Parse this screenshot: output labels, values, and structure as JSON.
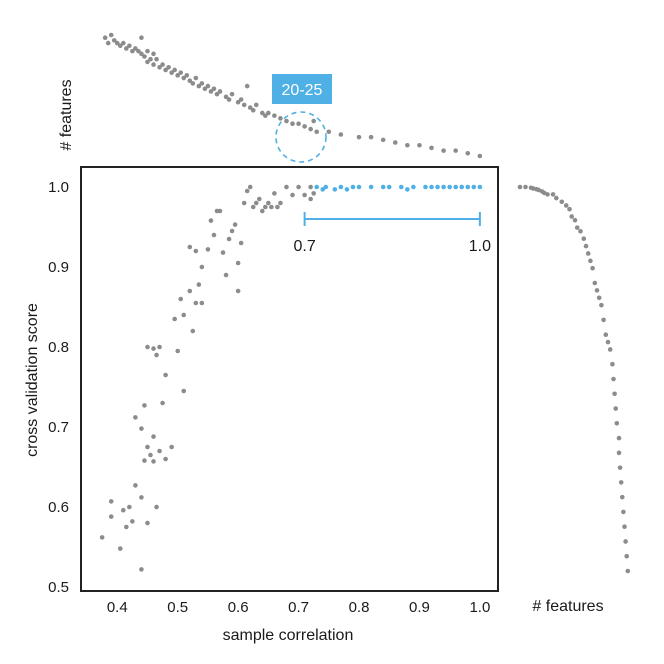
{
  "colors": {
    "point": "#8c8c8c",
    "highlight": "#4fb0e6",
    "badge": "#4fb0e6",
    "frame": "#222222"
  },
  "chart_data": [
    {
      "type": "scatter",
      "xlabel": "sample correlation",
      "ylabel": "cross validation score",
      "xlim": [
        0.34,
        1.03
      ],
      "ylim": [
        0.495,
        1.025
      ],
      "xticks": [
        "0.4",
        "0.5",
        "0.6",
        "0.7",
        "0.8",
        "0.9",
        "1.0"
      ],
      "yticks": [
        "0.5",
        "0.6",
        "0.7",
        "0.8",
        "0.9",
        "1.0"
      ],
      "grid": false,
      "range_annotation": {
        "from": "0.7",
        "to": "1.0",
        "x": [
          0.71,
          1.0
        ],
        "y": 0.96
      },
      "series": [
        {
          "points": [
            [
              0.375,
              0.562
            ],
            [
              0.39,
              0.588
            ],
            [
              0.39,
              0.607
            ],
            [
              0.405,
              0.548
            ],
            [
              0.41,
              0.596
            ],
            [
              0.415,
              0.575
            ],
            [
              0.42,
              0.6
            ],
            [
              0.425,
              0.582
            ],
            [
              0.43,
              0.627
            ],
            [
              0.43,
              0.712
            ],
            [
              0.44,
              0.698
            ],
            [
              0.44,
              0.612
            ],
            [
              0.44,
              0.522
            ],
            [
              0.445,
              0.727
            ],
            [
              0.445,
              0.658
            ],
            [
              0.45,
              0.675
            ],
            [
              0.45,
              0.8
            ],
            [
              0.45,
              0.58
            ],
            [
              0.455,
              0.665
            ],
            [
              0.46,
              0.798
            ],
            [
              0.46,
              0.688
            ],
            [
              0.46,
              0.657
            ],
            [
              0.465,
              0.79
            ],
            [
              0.465,
              0.6
            ],
            [
              0.47,
              0.8
            ],
            [
              0.47,
              0.67
            ],
            [
              0.475,
              0.73
            ],
            [
              0.48,
              0.765
            ],
            [
              0.48,
              0.66
            ],
            [
              0.49,
              0.675
            ],
            [
              0.495,
              0.835
            ],
            [
              0.5,
              0.795
            ],
            [
              0.505,
              0.86
            ],
            [
              0.51,
              0.745
            ],
            [
              0.51,
              0.84
            ],
            [
              0.52,
              0.925
            ],
            [
              0.52,
              0.87
            ],
            [
              0.525,
              0.82
            ],
            [
              0.53,
              0.92
            ],
            [
              0.53,
              0.855
            ],
            [
              0.535,
              0.878
            ],
            [
              0.54,
              0.855
            ],
            [
              0.54,
              0.9
            ],
            [
              0.55,
              0.922
            ],
            [
              0.555,
              0.958
            ],
            [
              0.56,
              0.94
            ],
            [
              0.565,
              0.97
            ],
            [
              0.57,
              0.97
            ],
            [
              0.575,
              0.918
            ],
            [
              0.58,
              0.89
            ],
            [
              0.585,
              0.935
            ],
            [
              0.59,
              0.945
            ],
            [
              0.595,
              0.953
            ],
            [
              0.6,
              0.905
            ],
            [
              0.6,
              0.87
            ],
            [
              0.605,
              0.93
            ],
            [
              0.61,
              0.98
            ],
            [
              0.615,
              0.995
            ],
            [
              0.62,
              1.0
            ],
            [
              0.625,
              0.975
            ],
            [
              0.63,
              0.98
            ],
            [
              0.635,
              0.985
            ],
            [
              0.64,
              0.97
            ],
            [
              0.645,
              0.975
            ],
            [
              0.65,
              0.98
            ],
            [
              0.655,
              0.975
            ],
            [
              0.66,
              0.992
            ],
            [
              0.665,
              0.975
            ],
            [
              0.67,
              0.98
            ],
            [
              0.68,
              1.0
            ],
            [
              0.69,
              0.99
            ],
            [
              0.7,
              1.0
            ],
            [
              0.71,
              0.99
            ],
            [
              0.72,
              0.985
            ],
            [
              0.72,
              1.0
            ],
            [
              0.725,
              0.992
            ]
          ],
          "color": "#8c8c8c"
        },
        {
          "points": [
            [
              0.73,
              1.0
            ],
            [
              0.74,
              0.997
            ],
            [
              0.745,
              1.0
            ],
            [
              0.76,
              0.997
            ],
            [
              0.77,
              1.0
            ],
            [
              0.78,
              0.997
            ],
            [
              0.79,
              1.0
            ],
            [
              0.8,
              1.0
            ],
            [
              0.82,
              1.0
            ],
            [
              0.84,
              1.0
            ],
            [
              0.85,
              1.0
            ],
            [
              0.87,
              1.0
            ],
            [
              0.88,
              0.997
            ],
            [
              0.89,
              1.0
            ],
            [
              0.91,
              1.0
            ],
            [
              0.92,
              1.0
            ],
            [
              0.93,
              1.0
            ],
            [
              0.94,
              1.0
            ],
            [
              0.95,
              1.0
            ],
            [
              0.96,
              1.0
            ],
            [
              0.97,
              1.0
            ],
            [
              0.98,
              1.0
            ],
            [
              0.99,
              1.0
            ],
            [
              1.0,
              1.0
            ]
          ],
          "color": "#4fb0e6"
        }
      ]
    },
    {
      "type": "scatter",
      "ylabel": "# features",
      "badge": "20-25",
      "series": [
        {
          "points": [
            [
              0.38,
              56
            ],
            [
              0.385,
              54
            ],
            [
              0.39,
              57
            ],
            [
              0.395,
              55
            ],
            [
              0.4,
              54
            ],
            [
              0.405,
              53
            ],
            [
              0.41,
              54
            ],
            [
              0.415,
              52
            ],
            [
              0.42,
              53
            ],
            [
              0.425,
              51
            ],
            [
              0.43,
              52
            ],
            [
              0.435,
              51
            ],
            [
              0.44,
              50
            ],
            [
              0.44,
              56
            ],
            [
              0.445,
              49
            ],
            [
              0.45,
              51
            ],
            [
              0.45,
              47
            ],
            [
              0.455,
              48
            ],
            [
              0.46,
              50
            ],
            [
              0.46,
              46
            ],
            [
              0.465,
              48
            ],
            [
              0.47,
              45
            ],
            [
              0.475,
              46
            ],
            [
              0.48,
              44
            ],
            [
              0.485,
              45
            ],
            [
              0.49,
              43
            ],
            [
              0.495,
              44
            ],
            [
              0.5,
              42
            ],
            [
              0.505,
              43
            ],
            [
              0.51,
              41
            ],
            [
              0.515,
              42
            ],
            [
              0.52,
              40
            ],
            [
              0.525,
              39
            ],
            [
              0.53,
              41
            ],
            [
              0.535,
              38
            ],
            [
              0.54,
              39
            ],
            [
              0.545,
              37
            ],
            [
              0.55,
              38
            ],
            [
              0.555,
              36
            ],
            [
              0.56,
              37
            ],
            [
              0.565,
              35
            ],
            [
              0.57,
              36
            ],
            [
              0.58,
              34
            ],
            [
              0.585,
              33
            ],
            [
              0.59,
              35
            ],
            [
              0.6,
              32
            ],
            [
              0.605,
              33
            ],
            [
              0.61,
              31
            ],
            [
              0.615,
              38
            ],
            [
              0.62,
              30
            ],
            [
              0.625,
              29
            ],
            [
              0.63,
              31
            ],
            [
              0.64,
              28
            ],
            [
              0.645,
              27
            ],
            [
              0.65,
              28
            ],
            [
              0.66,
              27
            ],
            [
              0.67,
              26
            ],
            [
              0.68,
              25
            ],
            [
              0.69,
              24
            ],
            [
              0.7,
              24
            ],
            [
              0.71,
              23
            ],
            [
              0.72,
              22
            ],
            [
              0.725,
              25
            ],
            [
              0.73,
              21
            ],
            [
              0.75,
              21
            ],
            [
              0.77,
              20
            ],
            [
              0.8,
              19
            ],
            [
              0.82,
              19
            ],
            [
              0.84,
              18
            ],
            [
              0.86,
              17
            ],
            [
              0.88,
              16
            ],
            [
              0.9,
              16
            ],
            [
              0.92,
              15
            ],
            [
              0.94,
              14
            ],
            [
              0.96,
              14
            ],
            [
              0.98,
              13
            ],
            [
              1.0,
              12
            ]
          ],
          "color": "#8c8c8c"
        }
      ]
    },
    {
      "type": "scatter",
      "xlabel": "# features",
      "series": [
        {
          "points": [
            [
              1.0,
              0.0
            ],
            [
              1.0,
              0.05
            ],
            [
              0.999,
              0.1
            ],
            [
              0.998,
              0.12
            ],
            [
              0.997,
              0.15
            ],
            [
              0.996,
              0.17
            ],
            [
              0.994,
              0.2
            ],
            [
              0.992,
              0.22
            ],
            [
              0.99,
              0.25
            ],
            [
              0.99,
              0.3
            ],
            [
              0.985,
              0.33
            ],
            [
              0.98,
              0.38
            ],
            [
              0.975,
              0.42
            ],
            [
              0.97,
              0.45
            ],
            [
              0.96,
              0.47
            ],
            [
              0.955,
              0.5
            ],
            [
              0.945,
              0.52
            ],
            [
              0.94,
              0.55
            ],
            [
              0.93,
              0.58
            ],
            [
              0.92,
              0.6
            ],
            [
              0.91,
              0.62
            ],
            [
              0.9,
              0.64
            ],
            [
              0.89,
              0.66
            ],
            [
              0.87,
              0.68
            ],
            [
              0.86,
              0.7
            ],
            [
              0.85,
              0.72
            ],
            [
              0.84,
              0.74
            ],
            [
              0.82,
              0.76
            ],
            [
              0.8,
              0.78
            ],
            [
              0.79,
              0.8
            ],
            [
              0.78,
              0.82
            ],
            [
              0.76,
              0.84
            ],
            [
              0.74,
              0.85
            ],
            [
              0.72,
              0.86
            ],
            [
              0.7,
              0.87
            ],
            [
              0.68,
              0.88
            ],
            [
              0.66,
              0.9
            ],
            [
              0.64,
              0.9
            ],
            [
              0.62,
              0.91
            ],
            [
              0.6,
              0.92
            ],
            [
              0.58,
              0.93
            ],
            [
              0.56,
              0.94
            ],
            [
              0.54,
              0.95
            ],
            [
              0.52,
              0.96
            ],
            [
              0.5,
              0.97
            ],
            [
              0.48,
              0.98
            ]
          ],
          "color": "#8c8c8c"
        }
      ]
    }
  ]
}
